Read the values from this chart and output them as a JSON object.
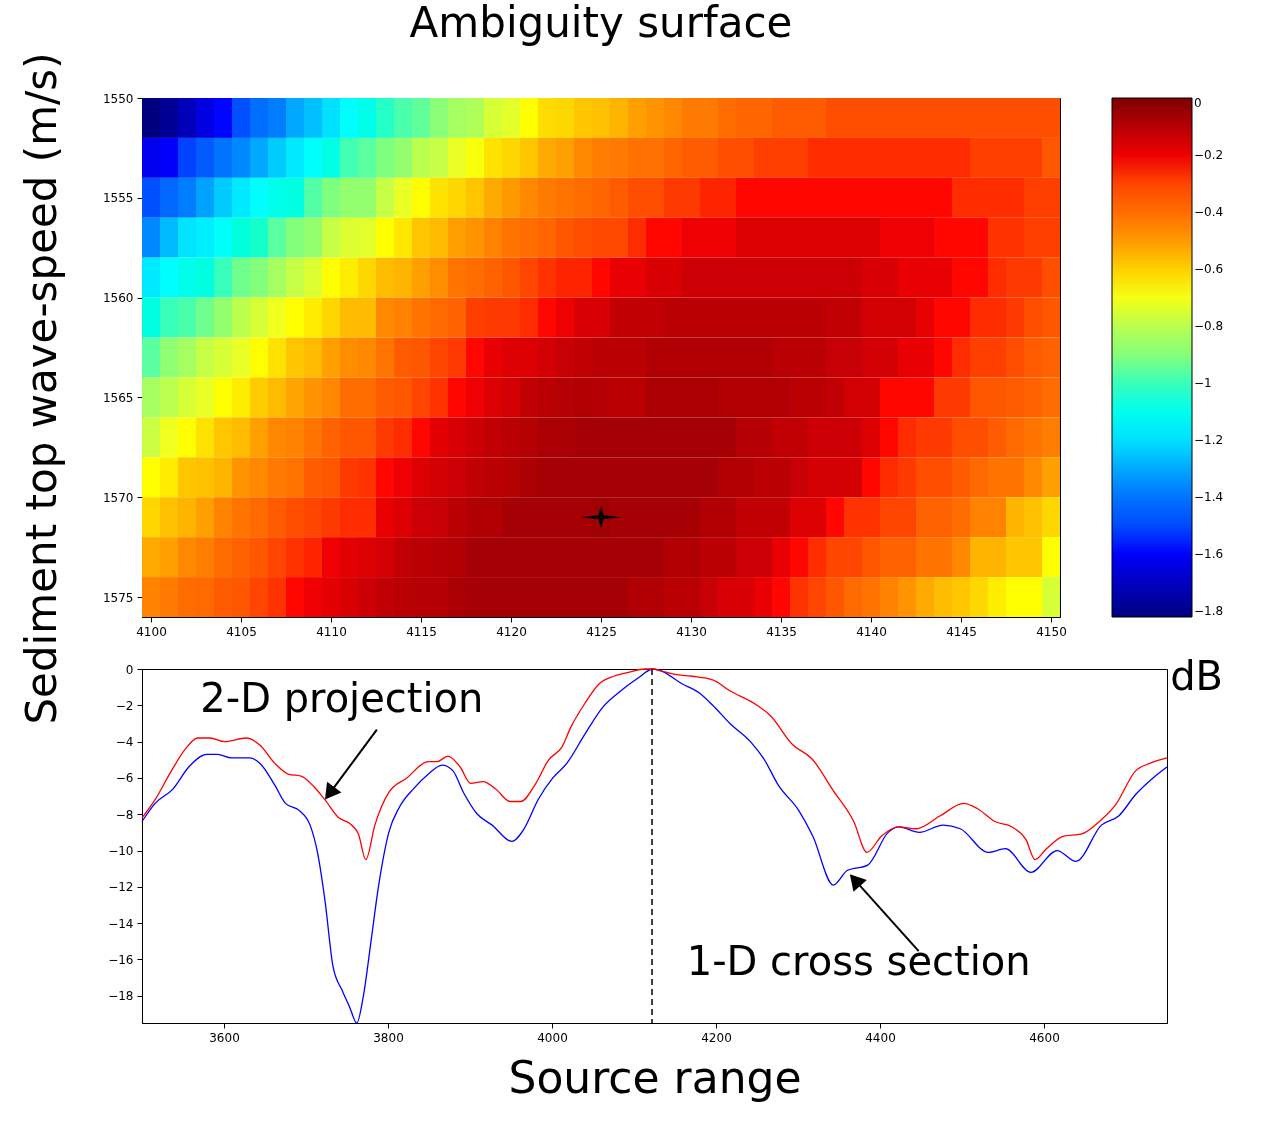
{
  "chart_data": [
    {
      "type": "heatmap",
      "title": "Ambiguity surface",
      "ylabel": "Sediment top wave-speed (m/s)",
      "clabel": "dB",
      "x": [
        4100,
        4101,
        4102,
        4103,
        4104,
        4105,
        4106,
        4107,
        4108,
        4109,
        4110,
        4111,
        4112,
        4113,
        4114,
        4115,
        4116,
        4117,
        4118,
        4119,
        4120,
        4121,
        4122,
        4123,
        4124,
        4125,
        4126,
        4127,
        4128,
        4129,
        4130,
        4131,
        4132,
        4133,
        4134,
        4135,
        4136,
        4137,
        4138,
        4139,
        4140,
        4141,
        4142,
        4143,
        4144,
        4145,
        4146,
        4147,
        4148,
        4149,
        4150
      ],
      "cells": [
        [
          -1.82,
          -1.78,
          -1.71,
          -1.64,
          -1.59,
          -1.49,
          -1.41,
          -1.37,
          -1.3,
          -1.26,
          -1.2,
          -1.14,
          -1.09,
          -1.02,
          -0.98,
          -0.95,
          -0.89,
          -0.84,
          -0.82,
          -0.75,
          -0.73,
          -0.68,
          -0.62,
          -0.61,
          -0.58,
          -0.57,
          -0.55,
          -0.51,
          -0.49,
          -0.47,
          -0.44,
          -0.44,
          -0.4,
          -0.38,
          -0.38,
          -0.35,
          -0.35,
          -0.35,
          -0.32,
          -0.32,
          -0.32,
          -0.32,
          -0.32,
          -0.32,
          -0.32,
          -0.32,
          -0.32,
          -0.32,
          -0.32,
          -0.32,
          -0.32
        ],
        [
          -1.62,
          -1.6,
          -1.52,
          -1.46,
          -1.4,
          -1.35,
          -1.3,
          -1.24,
          -1.18,
          -1.13,
          -1.08,
          -0.99,
          -0.96,
          -0.91,
          -0.87,
          -0.8,
          -0.78,
          -0.72,
          -0.69,
          -0.63,
          -0.61,
          -0.58,
          -0.53,
          -0.51,
          -0.47,
          -0.45,
          -0.44,
          -0.41,
          -0.41,
          -0.38,
          -0.35,
          -0.35,
          -0.32,
          -0.32,
          -0.29,
          -0.29,
          -0.29,
          -0.26,
          -0.26,
          -0.26,
          -0.26,
          -0.26,
          -0.26,
          -0.26,
          -0.26,
          -0.26,
          -0.29,
          -0.29,
          -0.29,
          -0.29,
          -0.34
        ],
        [
          -1.49,
          -1.43,
          -1.37,
          -1.31,
          -1.24,
          -1.18,
          -1.14,
          -1.09,
          -1.07,
          -0.97,
          -0.91,
          -0.87,
          -0.87,
          -0.78,
          -0.72,
          -0.68,
          -0.63,
          -0.61,
          -0.58,
          -0.53,
          -0.5,
          -0.47,
          -0.44,
          -0.42,
          -0.4,
          -0.38,
          -0.35,
          -0.32,
          -0.32,
          -0.28,
          -0.28,
          -0.25,
          -0.25,
          -0.23,
          -0.23,
          -0.23,
          -0.23,
          -0.23,
          -0.23,
          -0.23,
          -0.23,
          -0.23,
          -0.23,
          -0.23,
          -0.23,
          -0.26,
          -0.26,
          -0.26,
          -0.26,
          -0.29,
          -0.29
        ],
        [
          -1.35,
          -1.27,
          -1.19,
          -1.17,
          -1.12,
          -1.06,
          -1.03,
          -0.96,
          -0.9,
          -0.87,
          -0.78,
          -0.74,
          -0.73,
          -0.68,
          -0.64,
          -0.58,
          -0.56,
          -0.51,
          -0.49,
          -0.46,
          -0.42,
          -0.4,
          -0.38,
          -0.34,
          -0.32,
          -0.31,
          -0.31,
          -0.26,
          -0.23,
          -0.23,
          -0.2,
          -0.2,
          -0.2,
          -0.17,
          -0.17,
          -0.17,
          -0.17,
          -0.17,
          -0.17,
          -0.17,
          -0.17,
          -0.2,
          -0.2,
          -0.2,
          -0.23,
          -0.23,
          -0.23,
          -0.27,
          -0.27,
          -0.29,
          -0.29
        ],
        [
          -1.18,
          -1.14,
          -1.09,
          -1.07,
          -1.0,
          -0.93,
          -0.9,
          -0.84,
          -0.78,
          -0.74,
          -0.68,
          -0.65,
          -0.61,
          -0.56,
          -0.55,
          -0.51,
          -0.48,
          -0.42,
          -0.4,
          -0.37,
          -0.34,
          -0.3,
          -0.27,
          -0.25,
          -0.25,
          -0.23,
          -0.19,
          -0.19,
          -0.16,
          -0.16,
          -0.14,
          -0.14,
          -0.14,
          -0.14,
          -0.14,
          -0.14,
          -0.14,
          -0.14,
          -0.14,
          -0.14,
          -0.16,
          -0.16,
          -0.19,
          -0.19,
          -0.19,
          -0.23,
          -0.23,
          -0.26,
          -0.28,
          -0.28,
          -0.32
        ],
        [
          -1.07,
          -1.0,
          -0.98,
          -0.93,
          -0.87,
          -0.8,
          -0.75,
          -0.71,
          -0.68,
          -0.65,
          -0.61,
          -0.56,
          -0.56,
          -0.47,
          -0.46,
          -0.42,
          -0.39,
          -0.37,
          -0.29,
          -0.28,
          -0.28,
          -0.26,
          -0.23,
          -0.2,
          -0.16,
          -0.16,
          -0.12,
          -0.12,
          -0.12,
          -0.11,
          -0.11,
          -0.11,
          -0.11,
          -0.11,
          -0.11,
          -0.11,
          -0.11,
          -0.11,
          -0.12,
          -0.12,
          -0.15,
          -0.15,
          -0.15,
          -0.19,
          -0.23,
          -0.23,
          -0.26,
          -0.26,
          -0.28,
          -0.32,
          -0.34
        ],
        [
          -0.96,
          -0.88,
          -0.84,
          -0.78,
          -0.75,
          -0.72,
          -0.68,
          -0.63,
          -0.58,
          -0.56,
          -0.51,
          -0.48,
          -0.47,
          -0.42,
          -0.35,
          -0.34,
          -0.3,
          -0.28,
          -0.23,
          -0.19,
          -0.17,
          -0.17,
          -0.15,
          -0.13,
          -0.12,
          -0.11,
          -0.11,
          -0.11,
          -0.09,
          -0.09,
          -0.09,
          -0.09,
          -0.09,
          -0.09,
          -0.09,
          -0.11,
          -0.11,
          -0.11,
          -0.13,
          -0.13,
          -0.15,
          -0.15,
          -0.19,
          -0.19,
          -0.23,
          -0.26,
          -0.29,
          -0.29,
          -0.32,
          -0.35,
          -0.37
        ],
        [
          -0.84,
          -0.8,
          -0.75,
          -0.72,
          -0.68,
          -0.65,
          -0.59,
          -0.56,
          -0.52,
          -0.49,
          -0.47,
          -0.4,
          -0.4,
          -0.35,
          -0.34,
          -0.3,
          -0.27,
          -0.23,
          -0.2,
          -0.17,
          -0.15,
          -0.12,
          -0.11,
          -0.1,
          -0.09,
          -0.1,
          -0.11,
          -0.11,
          -0.08,
          -0.08,
          -0.08,
          -0.08,
          -0.09,
          -0.09,
          -0.09,
          -0.09,
          -0.11,
          -0.11,
          -0.12,
          -0.15,
          -0.15,
          -0.23,
          -0.23,
          -0.23,
          -0.28,
          -0.28,
          -0.34,
          -0.34,
          -0.35,
          -0.37,
          -0.4
        ],
        [
          -0.77,
          -0.71,
          -0.68,
          -0.63,
          -0.58,
          -0.56,
          -0.51,
          -0.47,
          -0.46,
          -0.42,
          -0.37,
          -0.34,
          -0.34,
          -0.28,
          -0.26,
          -0.23,
          -0.18,
          -0.16,
          -0.14,
          -0.12,
          -0.11,
          -0.1,
          -0.08,
          -0.08,
          -0.07,
          -0.07,
          -0.07,
          -0.07,
          -0.07,
          -0.07,
          -0.07,
          -0.07,
          -0.07,
          -0.1,
          -0.1,
          -0.12,
          -0.12,
          -0.14,
          -0.14,
          -0.14,
          -0.17,
          -0.23,
          -0.26,
          -0.28,
          -0.28,
          -0.32,
          -0.32,
          -0.35,
          -0.39,
          -0.42,
          -0.45
        ],
        [
          -0.68,
          -0.65,
          -0.58,
          -0.57,
          -0.55,
          -0.49,
          -0.47,
          -0.44,
          -0.42,
          -0.35,
          -0.34,
          -0.28,
          -0.27,
          -0.23,
          -0.2,
          -0.17,
          -0.15,
          -0.14,
          -0.12,
          -0.11,
          -0.1,
          -0.08,
          -0.07,
          -0.07,
          -0.07,
          -0.07,
          -0.07,
          -0.07,
          -0.07,
          -0.07,
          -0.07,
          -0.07,
          -0.09,
          -0.09,
          -0.11,
          -0.11,
          -0.13,
          -0.15,
          -0.15,
          -0.15,
          -0.23,
          -0.26,
          -0.28,
          -0.32,
          -0.32,
          -0.35,
          -0.39,
          -0.42,
          -0.42,
          -0.47,
          -0.51
        ],
        [
          -0.61,
          -0.57,
          -0.55,
          -0.51,
          -0.46,
          -0.42,
          -0.39,
          -0.35,
          -0.32,
          -0.3,
          -0.28,
          -0.26,
          -0.26,
          -0.19,
          -0.17,
          -0.14,
          -0.13,
          -0.11,
          -0.09,
          -0.09,
          -0.07,
          -0.07,
          -0.07,
          -0.07,
          -0.07,
          -0.06,
          -0.07,
          -0.07,
          -0.07,
          -0.07,
          -0.07,
          -0.09,
          -0.09,
          -0.12,
          -0.12,
          -0.12,
          -0.17,
          -0.17,
          -0.23,
          -0.27,
          -0.27,
          -0.3,
          -0.3,
          -0.37,
          -0.37,
          -0.4,
          -0.46,
          -0.46,
          -0.55,
          -0.57,
          -0.61
        ],
        [
          -0.53,
          -0.51,
          -0.47,
          -0.45,
          -0.4,
          -0.37,
          -0.34,
          -0.3,
          -0.27,
          -0.25,
          -0.2,
          -0.18,
          -0.17,
          -0.15,
          -0.12,
          -0.11,
          -0.1,
          -0.09,
          -0.07,
          -0.07,
          -0.07,
          -0.07,
          -0.07,
          -0.07,
          -0.07,
          -0.07,
          -0.07,
          -0.07,
          -0.07,
          -0.09,
          -0.09,
          -0.11,
          -0.11,
          -0.14,
          -0.14,
          -0.19,
          -0.23,
          -0.26,
          -0.3,
          -0.3,
          -0.34,
          -0.37,
          -0.37,
          -0.42,
          -0.42,
          -0.47,
          -0.55,
          -0.55,
          -0.58,
          -0.58,
          -0.68
        ],
        [
          -0.46,
          -0.44,
          -0.4,
          -0.39,
          -0.35,
          -0.34,
          -0.3,
          -0.27,
          -0.23,
          -0.2,
          -0.18,
          -0.16,
          -0.14,
          -0.12,
          -0.11,
          -0.1,
          -0.1,
          -0.08,
          -0.07,
          -0.07,
          -0.07,
          -0.07,
          -0.07,
          -0.07,
          -0.07,
          -0.07,
          -0.07,
          -0.09,
          -0.09,
          -0.11,
          -0.11,
          -0.13,
          -0.16,
          -0.16,
          -0.19,
          -0.23,
          -0.27,
          -0.3,
          -0.34,
          -0.39,
          -0.42,
          -0.46,
          -0.49,
          -0.53,
          -0.56,
          -0.58,
          -0.61,
          -0.65,
          -0.68,
          -0.68,
          -0.75
        ]
      ],
      "xlim": [
        4099.5,
        4150.5
      ],
      "xticks": [
        4100,
        4105,
        4110,
        4115,
        4120,
        4125,
        4130,
        4135,
        4140,
        4145,
        4150
      ],
      "ylim": [
        1576,
        1550
      ],
      "yticks": [
        1550,
        1555,
        1560,
        1565,
        1570,
        1575
      ],
      "clim": [
        -1.82,
        0
      ],
      "cticks": [
        0,
        {
          "value": -0.2,
          "label": "−0.2"
        },
        {
          "value": -0.4,
          "label": "−0.4"
        },
        {
          "value": -0.6,
          "label": "−0.6"
        },
        {
          "value": -0.8,
          "label": "−0.8"
        },
        {
          "value": -1,
          "label": "−1"
        },
        {
          "value": -1.2,
          "label": "−1.2"
        },
        {
          "value": -1.4,
          "label": "−1.4"
        },
        {
          "value": -1.6,
          "label": "−1.6"
        },
        {
          "value": -1.8,
          "label": "−1.8"
        }
      ],
      "marker": "star",
      "series": [
        {
          "type": "scatter",
          "color": "#000000",
          "x": [
            4125
          ],
          "values": [
            1571
          ]
        }
      ]
    },
    {
      "type": "line",
      "xlabel": "Source range",
      "xlim": [
        3500,
        4750
      ],
      "xticks": [
        3600,
        3800,
        4000,
        4200,
        4400,
        4600
      ],
      "ylim": [
        -19.5,
        0
      ],
      "yticks": [
        0,
        {
          "value": -2,
          "label": "−2"
        },
        {
          "value": -4,
          "label": "−4"
        },
        {
          "value": -6,
          "label": "−6"
        },
        {
          "value": -8,
          "label": "−8"
        },
        {
          "value": -10,
          "label": "−10"
        },
        {
          "value": -12,
          "label": "−12"
        },
        {
          "value": -14,
          "label": "−14"
        },
        {
          "value": -16,
          "label": "−16"
        },
        {
          "value": -18,
          "label": "−18"
        }
      ],
      "line_style": "solid",
      "ref_lines": [
        {
          "axis": "x",
          "value": 4122,
          "color": "#000000",
          "line_style": "dashed"
        }
      ],
      "annotations": [
        {
          "text": "2-D projection",
          "x": 3723,
          "y": -7.2
        },
        {
          "text": "1-D cross section",
          "x": 4363,
          "y": -11.3
        }
      ],
      "series": [
        {
          "color": "#0000ff",
          "x": [
            3500,
            3516,
            3538,
            3557,
            3579,
            3592,
            3609,
            3631,
            3644,
            3662,
            3675,
            3692,
            3705,
            3714,
            3723,
            3733,
            3744,
            3753,
            3762,
            3770,
            3779,
            3788,
            3801,
            3814,
            3831,
            3849,
            3866,
            3879,
            3892,
            3909,
            3927,
            3951,
            3966,
            3983,
            4001,
            4018,
            4040,
            4062,
            4084,
            4105,
            4123,
            4133,
            4158,
            4179,
            4196,
            4217,
            4242,
            4259,
            4276,
            4301,
            4318,
            4343,
            4360,
            4385,
            4410,
            4423,
            4448,
            4477,
            4498,
            4532,
            4553,
            4584,
            4616,
            4639,
            4670,
            4691,
            4712,
            4733,
            4750
          ],
          "values": [
            -8.4,
            -7.4,
            -6.6,
            -5.4,
            -4.7,
            -4.7,
            -4.9,
            -4.9,
            -5.2,
            -6.4,
            -7.4,
            -7.8,
            -8.6,
            -10.1,
            -12.7,
            -16.4,
            -17.7,
            -18.6,
            -19.5,
            -18.0,
            -15.1,
            -12.1,
            -9.0,
            -7.6,
            -6.6,
            -5.8,
            -5.3,
            -5.6,
            -6.8,
            -8.0,
            -8.6,
            -9.5,
            -8.8,
            -7.2,
            -6.0,
            -5.2,
            -3.6,
            -2.1,
            -1.2,
            -0.5,
            0,
            -0.1,
            -0.8,
            -1.3,
            -2.0,
            -3.0,
            -4.0,
            -5.0,
            -6.4,
            -7.8,
            -9.2,
            -11.9,
            -11.1,
            -10.8,
            -9.0,
            -8.7,
            -9.0,
            -8.6,
            -8.8,
            -10.1,
            -9.9,
            -11.2,
            -10.0,
            -10.6,
            -8.6,
            -8.1,
            -6.9,
            -6.0,
            -5.4
          ]
        },
        {
          "color": "#ff0000",
          "x": [
            3500,
            3516,
            3536,
            3553,
            3568,
            3583,
            3601,
            3627,
            3644,
            3662,
            3679,
            3694,
            3710,
            3723,
            3740,
            3753,
            3764,
            3773,
            3784,
            3801,
            3823,
            3849,
            3860,
            3873,
            3888,
            3901,
            3916,
            3931,
            3949,
            3962,
            3979,
            3996,
            4012,
            4023,
            4040,
            4058,
            4075,
            4092,
            4114,
            4123,
            4133,
            4150,
            4171,
            4196,
            4217,
            4250,
            4267,
            4292,
            4318,
            4343,
            4368,
            4384,
            4402,
            4423,
            4444,
            4473,
            4502,
            4519,
            4540,
            4561,
            4578,
            4589,
            4603,
            4624,
            4645,
            4670,
            4687,
            4712,
            4729,
            4750
          ],
          "values": [
            -8.2,
            -7.2,
            -5.6,
            -4.4,
            -3.8,
            -3.8,
            -4.0,
            -3.8,
            -4.2,
            -5.2,
            -5.8,
            -5.9,
            -6.5,
            -7.2,
            -8.2,
            -8.5,
            -9.1,
            -10.5,
            -8.6,
            -6.8,
            -6.0,
            -5.1,
            -5.1,
            -4.8,
            -5.4,
            -6.3,
            -6.2,
            -6.6,
            -7.3,
            -7.3,
            -6.4,
            -5.0,
            -4.3,
            -3.2,
            -1.9,
            -0.8,
            -0.4,
            -0.2,
            0,
            0,
            -0.1,
            -0.3,
            -0.4,
            -0.6,
            -1.2,
            -2.0,
            -2.6,
            -4.1,
            -5.0,
            -6.7,
            -8.4,
            -10.1,
            -9.2,
            -8.7,
            -8.8,
            -8.1,
            -7.4,
            -7.7,
            -8.4,
            -8.7,
            -9.4,
            -10.5,
            -9.9,
            -9.2,
            -9.1,
            -8.3,
            -7.5,
            -5.6,
            -5.2,
            -4.9
          ]
        }
      ]
    }
  ]
}
